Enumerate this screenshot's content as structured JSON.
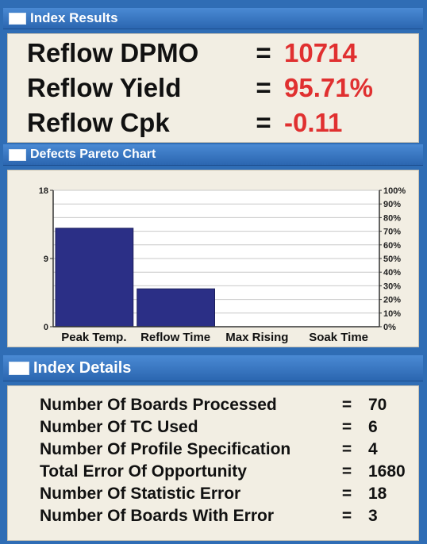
{
  "panels": {
    "results_title": "Index Results",
    "pareto_title": "Defects Pareto Chart",
    "details_title": "Index Details"
  },
  "results": [
    {
      "label": "Reflow DPMO",
      "eq": "=",
      "value": "10714"
    },
    {
      "label": "Reflow Yield",
      "eq": "=",
      "value": "95.71%"
    },
    {
      "label": "Reflow Cpk",
      "eq": "=",
      "value": "-0.11"
    }
  ],
  "details": [
    {
      "label": "Number Of Boards Processed",
      "eq": "=",
      "value": "70"
    },
    {
      "label": "Number Of TC Used",
      "eq": "=",
      "value": "6"
    },
    {
      "label": "Number Of Profile Specification",
      "eq": "=",
      "value": "4"
    },
    {
      "label": "Total Error Of Opportunity",
      "eq": "=",
      "value": "1680"
    },
    {
      "label": "Number Of Statistic Error",
      "eq": "=",
      "value": "18"
    },
    {
      "label": "Number Of Boards With Error",
      "eq": "=",
      "value": "3"
    }
  ],
  "colors": {
    "panel_blue": "#2f6db5",
    "bar": "#2b2f86",
    "value_red": "#e03030"
  },
  "chart_data": {
    "type": "bar",
    "title": "Defects Pareto Chart",
    "categories": [
      "Peak Temp.",
      "Reflow Time",
      "Max Rising",
      "Soak Time"
    ],
    "values": [
      13,
      5,
      0,
      0
    ],
    "ylim": [
      0,
      18
    ],
    "y_ticks": [
      "0",
      "9",
      "18"
    ],
    "y2_ticks": [
      "0%",
      "10%",
      "20%",
      "30%",
      "40%",
      "50%",
      "60%",
      "70%",
      "80%",
      "90%",
      "100%"
    ],
    "grid": true,
    "legend": "none"
  }
}
